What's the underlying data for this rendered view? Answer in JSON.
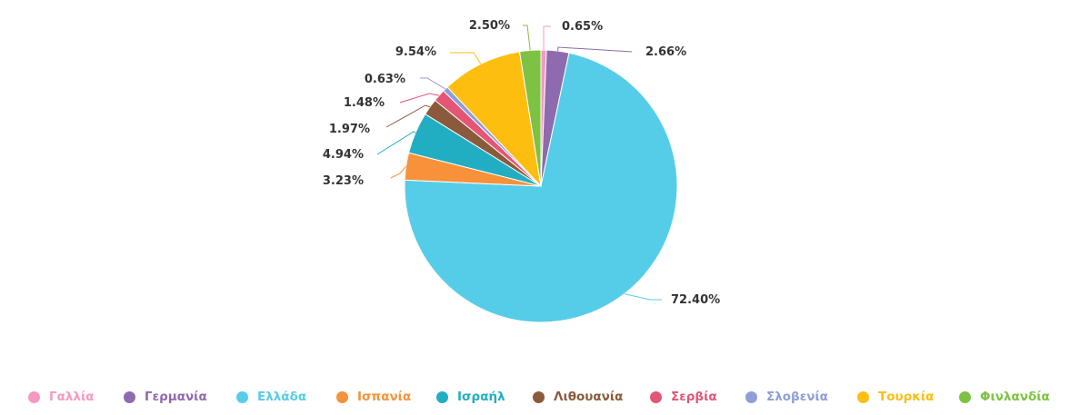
{
  "chart_data": {
    "type": "pie",
    "title": "",
    "labels": [
      "Γαλλία",
      "Γερμανία",
      "Ελλάδα",
      "Ισπανία",
      "Ισραήλ",
      "Λιθουανία",
      "Σερβία",
      "Σλοβενία",
      "Τουρκία",
      "Φινλανδία"
    ],
    "values": [
      0.65,
      2.66,
      72.4,
      3.23,
      4.94,
      1.97,
      1.48,
      0.63,
      9.54,
      2.5
    ],
    "value_labels": [
      "0.65%",
      "2.66%",
      "72.40%",
      "3.23%",
      "4.94%",
      "1.97%",
      "1.48%",
      "0.63%",
      "9.54%",
      "2.50%"
    ],
    "colors": [
      "#f49ac1",
      "#8e6aaf",
      "#56cde8",
      "#f7913a",
      "#22aec2",
      "#8b5a3c",
      "#e45576",
      "#8f9ed8",
      "#fdbe10",
      "#7dc242"
    ],
    "start_angle_deg": 0,
    "direction": "clockwise",
    "legend_position": "bottom"
  }
}
